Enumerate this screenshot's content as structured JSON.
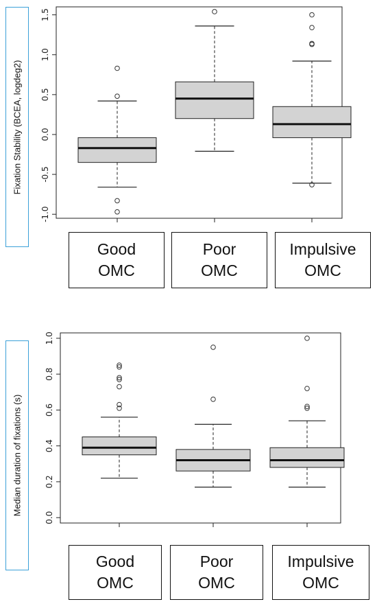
{
  "chart_data": [
    {
      "type": "box",
      "ylabel": "Fixation Stability (BCEA, logdeg2)",
      "ylim": [
        -1.05,
        1.6
      ],
      "yticks": [
        "-1.0",
        "-0.5",
        "0.0",
        "0.5",
        "1.0",
        "1.5"
      ],
      "categories": [
        "Good\nOMC",
        "Poor\nOMC",
        "Impulsive\nOMC"
      ],
      "grid": false,
      "boxes": [
        {
          "min": -0.66,
          "q1": -0.35,
          "median": -0.17,
          "q3": -0.04,
          "max": 0.42,
          "outliers": [
            0.83,
            0.48,
            -0.83,
            -0.97
          ]
        },
        {
          "min": -0.21,
          "q1": 0.2,
          "median": 0.45,
          "q3": 0.66,
          "max": 1.36,
          "outliers": [
            1.54
          ]
        },
        {
          "min": -0.61,
          "q1": -0.04,
          "median": 0.13,
          "q3": 0.35,
          "max": 0.92,
          "outliers": [
            1.5,
            1.34,
            1.13,
            1.14,
            -0.63
          ]
        }
      ]
    },
    {
      "type": "box",
      "ylabel": "Median duration of fixations (s)",
      "ylim": [
        -0.03,
        1.03
      ],
      "yticks": [
        "0.0",
        "0.2",
        "0.4",
        "0.6",
        "0.8",
        "1.0"
      ],
      "categories": [
        "Good\nOMC",
        "Poor\nOMC",
        "Impulsive\nOMC"
      ],
      "grid": false,
      "boxes": [
        {
          "min": 0.22,
          "q1": 0.35,
          "median": 0.39,
          "q3": 0.45,
          "max": 0.56,
          "outliers": [
            0.84,
            0.85,
            0.78,
            0.77,
            0.73,
            0.63,
            0.61
          ]
        },
        {
          "min": 0.17,
          "q1": 0.26,
          "median": 0.32,
          "q3": 0.38,
          "max": 0.52,
          "outliers": [
            0.95,
            0.66
          ]
        },
        {
          "min": 0.17,
          "q1": 0.28,
          "median": 0.32,
          "q3": 0.39,
          "max": 0.54,
          "outliers": [
            1.0,
            0.72,
            0.62,
            0.61
          ]
        }
      ]
    }
  ]
}
